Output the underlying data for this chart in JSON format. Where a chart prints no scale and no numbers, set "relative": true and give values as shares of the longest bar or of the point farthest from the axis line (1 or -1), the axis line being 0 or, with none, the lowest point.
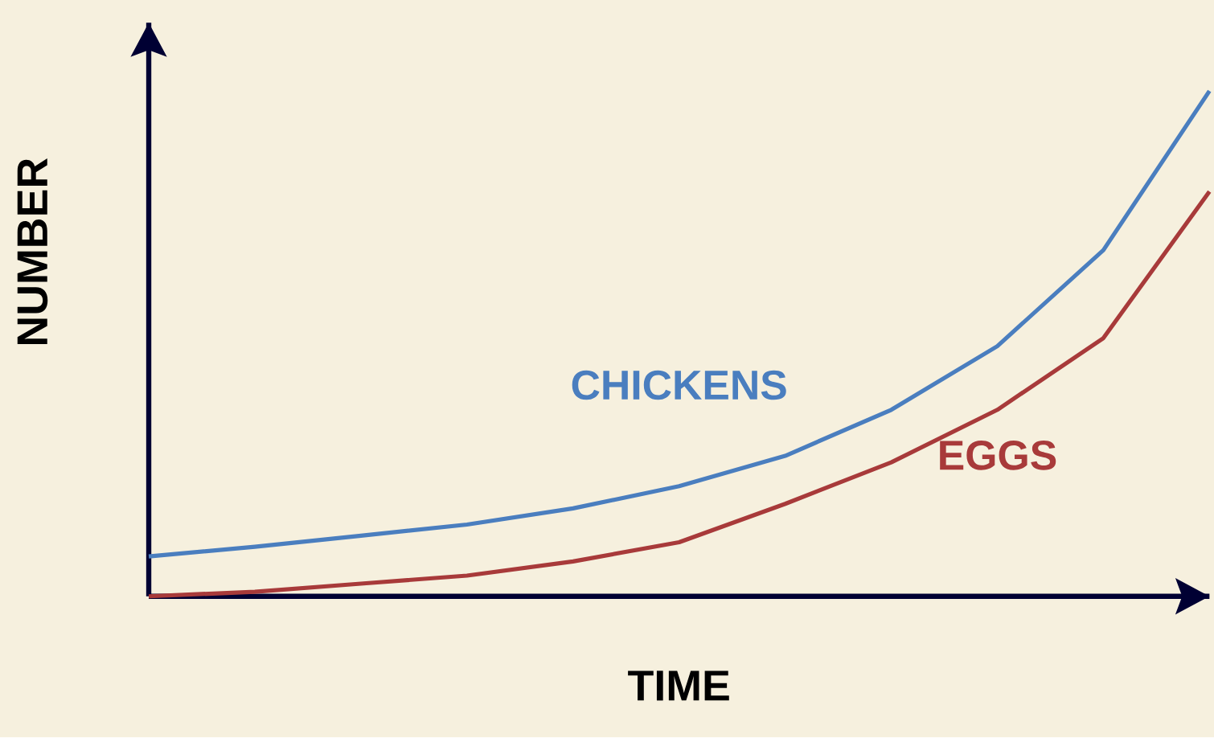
{
  "chart_data": {
    "type": "line",
    "relative": true,
    "xlabel": "TIME",
    "ylabel": "NUMBER",
    "categories": [
      null,
      null,
      null,
      null,
      null,
      null,
      null,
      null,
      null,
      null,
      null
    ],
    "series": [
      {
        "name": "CHICKENS",
        "color": "#4a7ebf",
        "values": [
          0.079,
          0.098,
          0.12,
          0.142,
          0.174,
          0.218,
          0.278,
          0.369,
          0.495,
          0.685,
          1
        ]
      },
      {
        "name": "EGGS",
        "color": "#a83a3a",
        "values": [
          0,
          0.009,
          0.025,
          0.041,
          0.069,
          0.107,
          0.183,
          0.265,
          0.369,
          0.511,
          0.801
        ]
      }
    ]
  }
}
